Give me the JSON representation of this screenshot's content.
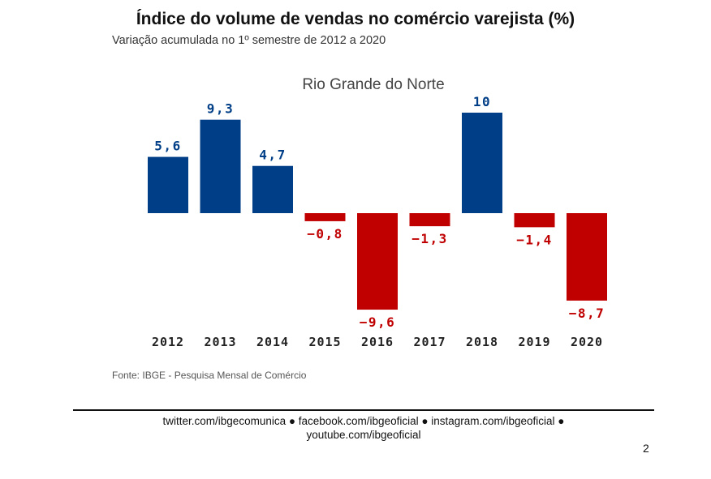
{
  "page": {
    "title": "Índice do volume de vendas no comércio varejista (%)",
    "subtitle": "Variação acumulada no 1º semestre de 2012 a 2020",
    "source": "Fonte: IBGE - Pesquisa Mensal de Comércio",
    "footer_line1": "twitter.com/ibgecomunica ● facebook.com/ibgeoficial ● instagram.com/ibgeoficial ●",
    "footer_line2": "youtube.com/ibgeoficial",
    "page_number": "2"
  },
  "chart_data": {
    "type": "bar",
    "title": "Rio Grande do Norte",
    "categories": [
      "2012",
      "2013",
      "2014",
      "2015",
      "2016",
      "2017",
      "2018",
      "2019",
      "2020"
    ],
    "values": [
      5.6,
      9.3,
      4.7,
      -0.8,
      -9.6,
      -1.3,
      10,
      -1.4,
      -8.7
    ],
    "value_labels": [
      "5,6",
      "9,3",
      "4,7",
      "−0,8",
      "−9,6",
      "−1,3",
      "10",
      "−1,4",
      "−8,7"
    ],
    "xlabel": "",
    "ylabel": "",
    "ylim": [
      -10,
      10
    ],
    "grid": false,
    "colors": {
      "positive": "#003f87",
      "negative": "#c00000"
    }
  }
}
